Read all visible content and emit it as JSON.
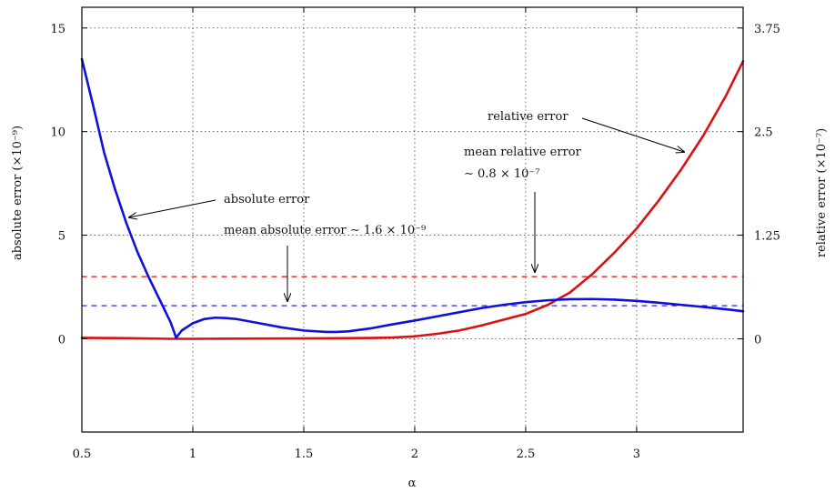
{
  "chart_data": {
    "type": "line",
    "xlabel": "α",
    "ylabel": "absolute error (×10⁻⁹)",
    "ylabel_right": "relative error (×10⁻⁷)",
    "xlim": [
      0.5,
      3.48
    ],
    "ylim": [
      -4.5,
      16
    ],
    "ylim_right": [
      -1.125,
      4.0
    ],
    "x_ticks": [
      0.5,
      1,
      1.5,
      2,
      2.5,
      3
    ],
    "x_tick_labels": [
      "0.5",
      "1",
      "1.5",
      "2",
      "2.5",
      "3"
    ],
    "y_ticks": [
      0,
      5,
      10,
      15
    ],
    "y_tick_labels": [
      "0",
      "5",
      "10",
      "15"
    ],
    "y2_ticks": [
      0,
      1.25,
      2.5,
      3.75
    ],
    "y2_tick_labels": [
      "0",
      "1.25",
      "2.5",
      "3.75"
    ],
    "grid": true,
    "series": [
      {
        "name": "absolute error",
        "axis": "left",
        "color": "#1010dd",
        "x": [
          0.5,
          0.55,
          0.6,
          0.65,
          0.7,
          0.75,
          0.8,
          0.85,
          0.9,
          0.925,
          0.95,
          1.0,
          1.05,
          1.1,
          1.15,
          1.2,
          1.3,
          1.4,
          1.5,
          1.6,
          1.65,
          1.7,
          1.8,
          1.9,
          2.0,
          2.1,
          2.2,
          2.3,
          2.4,
          2.5,
          2.6,
          2.7,
          2.8,
          2.9,
          3.0,
          3.1,
          3.2,
          3.3,
          3.4,
          3.48
        ],
        "y": [
          13.5,
          11.3,
          9.0,
          7.2,
          5.6,
          4.2,
          3.0,
          1.9,
          0.8,
          0.05,
          0.4,
          0.75,
          0.95,
          1.02,
          1.0,
          0.95,
          0.75,
          0.55,
          0.4,
          0.33,
          0.33,
          0.36,
          0.5,
          0.7,
          0.88,
          1.08,
          1.28,
          1.48,
          1.64,
          1.77,
          1.86,
          1.91,
          1.92,
          1.89,
          1.83,
          1.74,
          1.64,
          1.54,
          1.43,
          1.33
        ]
      },
      {
        "name": "relative error",
        "axis": "right",
        "color": "#dd1010",
        "x": [
          0.5,
          0.7,
          0.9,
          1.0,
          1.2,
          1.4,
          1.6,
          1.8,
          1.9,
          2.0,
          2.1,
          2.2,
          2.3,
          2.4,
          2.5,
          2.6,
          2.7,
          2.8,
          2.9,
          3.0,
          3.1,
          3.2,
          3.3,
          3.4,
          3.48
        ],
        "y": [
          0.012,
          0.008,
          0.0,
          0.0,
          0.002,
          0.004,
          0.006,
          0.01,
          0.016,
          0.03,
          0.06,
          0.1,
          0.16,
          0.23,
          0.3,
          0.41,
          0.56,
          0.78,
          1.04,
          1.33,
          1.67,
          2.04,
          2.45,
          2.92,
          3.35
        ]
      },
      {
        "name": "mean relative error",
        "axis": "right",
        "color": "#dd1010",
        "style": "dashed",
        "x": [
          0.5,
          3.48
        ],
        "y": [
          0.75,
          0.75
        ]
      },
      {
        "name": "mean absolute error",
        "axis": "left",
        "color": "#1010dd",
        "style": "dashed",
        "x": [
          0.5,
          3.48
        ],
        "y": [
          1.6,
          1.6
        ]
      }
    ],
    "annotations": [
      {
        "text": "relative error"
      },
      {
        "text": "mean relative error"
      },
      {
        "text": "∼ 0.8 × 10⁻⁷"
      },
      {
        "text": "absolute error"
      },
      {
        "text": "mean absolute error ∼ 1.6 × 10⁻⁹"
      }
    ]
  }
}
